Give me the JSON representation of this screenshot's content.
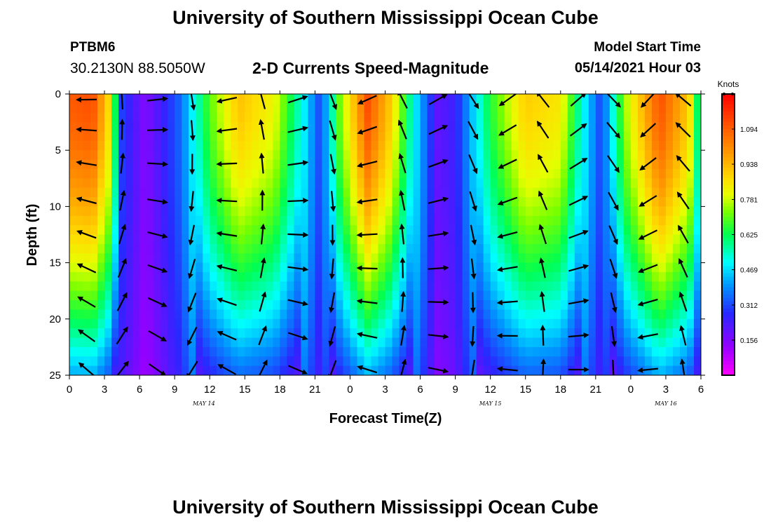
{
  "header": {
    "title": "University of Southern Mississippi Ocean Cube",
    "station_id": "PTBM6",
    "station_coords": "30.2130N  88.5050W",
    "subtitle": "2-D Currents Speed-Magnitude",
    "model_start_label": "Model Start Time",
    "model_start_value": "05/14/2021 Hour 03"
  },
  "footer": {
    "title": "University of Southern Mississippi Ocean Cube"
  },
  "chart_data": {
    "type": "heatmap",
    "title": "2-D Currents Speed-Magnitude",
    "xlabel": "Forecast Time(Z)",
    "ylabel": "Depth (ft)",
    "x_hours_range": [
      0,
      54
    ],
    "x_tick_labels": [
      "0",
      "3",
      "6",
      "9",
      "12",
      "15",
      "18",
      "21",
      "0",
      "3",
      "6",
      "9",
      "12",
      "15",
      "18",
      "21",
      "0",
      "3",
      "6"
    ],
    "x_tick_hours": [
      0,
      3,
      6,
      9,
      12,
      15,
      18,
      21,
      24,
      27,
      30,
      33,
      36,
      39,
      42,
      45,
      48,
      51,
      54
    ],
    "date_labels": [
      {
        "text": "MAY 14",
        "hour": 11.5
      },
      {
        "text": "MAY 15",
        "hour": 36
      },
      {
        "text": "MAY 16",
        "hour": 51
      }
    ],
    "ylim": [
      0,
      25
    ],
    "y_tick_labels": [
      "0",
      "5",
      "10",
      "15",
      "20",
      "25"
    ],
    "y_tick_values": [
      0,
      5,
      10,
      15,
      20,
      25
    ],
    "colorbar": {
      "unit_label": "Knots",
      "range": [
        0,
        1.25
      ],
      "tick_values": [
        1.094,
        0.938,
        0.781,
        0.625,
        0.469,
        0.312,
        0.156
      ],
      "tick_labels": [
        "1.094",
        "0.938",
        "0.781",
        "0.625",
        "0.469",
        "0.312",
        "0.156"
      ]
    },
    "speed_at_surface_knots": [
      {
        "hour": 0,
        "speed": 1.1
      },
      {
        "hour": 2,
        "speed": 1.12
      },
      {
        "hour": 3.5,
        "speed": 0.85
      },
      {
        "hour": 4.5,
        "speed": 0.3
      },
      {
        "hour": 6.5,
        "speed": 0.15
      },
      {
        "hour": 9.5,
        "speed": 0.35
      },
      {
        "hour": 12,
        "speed": 0.7
      },
      {
        "hour": 14.5,
        "speed": 0.92
      },
      {
        "hour": 17.5,
        "speed": 0.82
      },
      {
        "hour": 20,
        "speed": 0.5
      },
      {
        "hour": 21.5,
        "speed": 0.3
      },
      {
        "hour": 23,
        "speed": 0.7
      },
      {
        "hour": 25.5,
        "speed": 1.12
      },
      {
        "hour": 27.5,
        "speed": 0.9
      },
      {
        "hour": 29.5,
        "speed": 0.5
      },
      {
        "hour": 31.5,
        "speed": 0.2
      },
      {
        "hour": 33,
        "speed": 0.25
      },
      {
        "hour": 36,
        "speed": 0.65
      },
      {
        "hour": 39,
        "speed": 0.9
      },
      {
        "hour": 42,
        "speed": 0.85
      },
      {
        "hour": 44,
        "speed": 0.5
      },
      {
        "hour": 45.5,
        "speed": 0.3
      },
      {
        "hour": 47.5,
        "speed": 0.75
      },
      {
        "hour": 50.5,
        "speed": 1.12
      },
      {
        "hour": 53,
        "speed": 0.9
      },
      {
        "hour": 54,
        "speed": 0.5
      }
    ]
  }
}
